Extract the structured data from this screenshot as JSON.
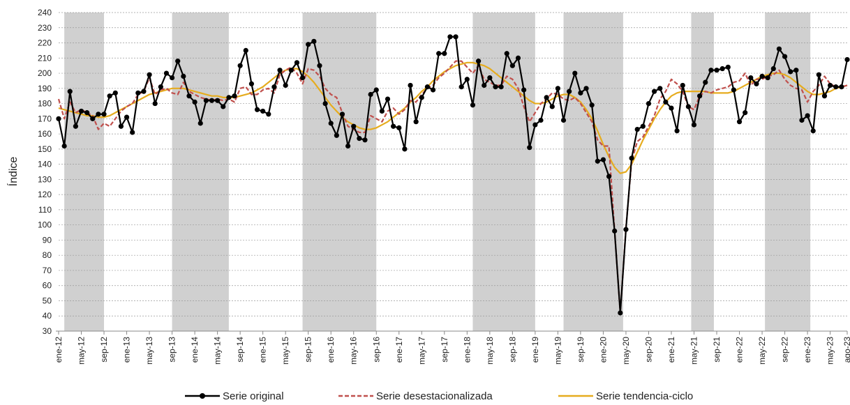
{
  "chart_data": {
    "type": "line",
    "y_label": "Índice",
    "categories": [
      "ene-12",
      null,
      null,
      null,
      "may-12",
      null,
      null,
      null,
      "sep-12",
      null,
      null,
      null,
      "ene-13",
      null,
      null,
      null,
      "may-13",
      null,
      null,
      null,
      "sep-13",
      null,
      null,
      null,
      "ene-14",
      null,
      null,
      null,
      "may-14",
      null,
      null,
      null,
      "sep-14",
      null,
      null,
      null,
      "ene-15",
      null,
      null,
      null,
      "may-15",
      null,
      null,
      null,
      "sep-15",
      null,
      null,
      null,
      "ene-16",
      null,
      null,
      null,
      "may-16",
      null,
      null,
      null,
      "sep-16",
      null,
      null,
      null,
      "ene-17",
      null,
      null,
      null,
      "may-17",
      null,
      null,
      null,
      "sep-17",
      null,
      null,
      null,
      "ene-18",
      null,
      null,
      null,
      "may-18",
      null,
      null,
      null,
      "sep-18",
      null,
      null,
      null,
      "ene-19",
      null,
      null,
      null,
      "may-19",
      null,
      null,
      null,
      "sep-19",
      null,
      null,
      null,
      "ene-20",
      null,
      null,
      null,
      "may-20",
      null,
      null,
      null,
      "sep-20",
      null,
      null,
      null,
      "ene-21",
      null,
      null,
      null,
      "may-21",
      null,
      null,
      null,
      "sep-21",
      null,
      null,
      null,
      "ene-22",
      null,
      null,
      null,
      "may-22",
      null,
      null,
      null,
      "sep-22",
      null,
      null,
      null,
      "ene-23",
      null,
      null,
      null,
      "may-23",
      null,
      null,
      "ago-23"
    ],
    "series": [
      {
        "name": "Serie original",
        "color": "#000000",
        "style": "solid-markers",
        "values": [
          170,
          152,
          188,
          165,
          175,
          174,
          170,
          173,
          173,
          185,
          187,
          165,
          171,
          161,
          187,
          188,
          199,
          180,
          191,
          200,
          197,
          208,
          198,
          185,
          181,
          167,
          182,
          182,
          182,
          178,
          184,
          185,
          205,
          215,
          193,
          176,
          175,
          173,
          191,
          202,
          192,
          202,
          207,
          197,
          219,
          221,
          205,
          180,
          167,
          159,
          173,
          152,
          165,
          157,
          156,
          186,
          189,
          175,
          183,
          165,
          164,
          150,
          192,
          168,
          184,
          191,
          189,
          213,
          213,
          224,
          224,
          191,
          196,
          179,
          208,
          192,
          197,
          191,
          191,
          213,
          205,
          210,
          189,
          151,
          166,
          169,
          184,
          178,
          190,
          169,
          188,
          200,
          187,
          190,
          179,
          142,
          143,
          132,
          96,
          42,
          97,
          144,
          163,
          165,
          180,
          188,
          190,
          181,
          177,
          162,
          192,
          178,
          166,
          185,
          194,
          202,
          202,
          203,
          204,
          189,
          168,
          174,
          197,
          193,
          198,
          197,
          203,
          216,
          211,
          201,
          202,
          169,
          172,
          162,
          199,
          185,
          192,
          191,
          191,
          209
        ]
      },
      {
        "name": "Serie desestacionalizada",
        "color": "#c0504d",
        "style": "dashed",
        "values": [
          183,
          170,
          181,
          174,
          176,
          174,
          172,
          163,
          167,
          165,
          170,
          175,
          178,
          180,
          186,
          188,
          197,
          186,
          189,
          190,
          187,
          186,
          194,
          188,
          186,
          184,
          183,
          182,
          183,
          182,
          183,
          181,
          190,
          191,
          186,
          186,
          189,
          190,
          187,
          199,
          202,
          204,
          200,
          193,
          203,
          202,
          198,
          190,
          186,
          184,
          174,
          165,
          163,
          161,
          161,
          172,
          170,
          168,
          175,
          177,
          173,
          176,
          182,
          181,
          186,
          190,
          192,
          197,
          200,
          204,
          208,
          208,
          204,
          200,
          205,
          196,
          194,
          192,
          192,
          198,
          196,
          190,
          178,
          168,
          174,
          180,
          183,
          187,
          186,
          183,
          182,
          184,
          180,
          174,
          168,
          156,
          152,
          152,
          96,
          42,
          98,
          142,
          155,
          158,
          165,
          172,
          183,
          188,
          196,
          193,
          188,
          178,
          176,
          185,
          188,
          187,
          189,
          190,
          191,
          194,
          195,
          200,
          192,
          196,
          196,
          198,
          199,
          202,
          196,
          192,
          190,
          189,
          181,
          188,
          192,
          198,
          193,
          191,
          191,
          192
        ]
      },
      {
        "name": "Serie tendencia-ciclo",
        "color": "#e6ac1e",
        "style": "solid",
        "values": [
          177,
          176,
          175,
          174,
          173,
          172,
          172,
          171,
          171,
          172,
          174,
          176,
          178,
          180,
          182,
          184,
          186,
          187,
          188,
          189,
          190,
          190,
          190,
          189,
          188,
          187,
          186,
          185,
          185,
          184,
          184,
          184,
          185,
          186,
          187,
          189,
          191,
          194,
          197,
          200,
          202,
          203,
          203,
          201,
          198,
          194,
          189,
          184,
          179,
          175,
          171,
          168,
          166,
          164,
          163,
          163,
          164,
          166,
          168,
          171,
          174,
          177,
          181,
          184,
          188,
          191,
          195,
          198,
          201,
          203,
          205,
          206,
          207,
          207,
          206,
          205,
          203,
          200,
          197,
          194,
          191,
          188,
          185,
          182,
          180,
          180,
          181,
          183,
          185,
          186,
          186,
          184,
          181,
          176,
          170,
          162,
          153,
          145,
          138,
          134,
          135,
          140,
          148,
          156,
          163,
          170,
          176,
          181,
          185,
          187,
          188,
          188,
          188,
          188,
          188,
          187,
          187,
          187,
          187,
          188,
          190,
          192,
          194,
          196,
          198,
          199,
          200,
          200,
          199,
          197,
          194,
          191,
          188,
          186,
          186,
          187,
          188,
          190,
          191,
          192
        ]
      }
    ],
    "shaded_periods": [
      [
        1,
        8
      ],
      [
        20,
        30
      ],
      [
        43,
        56
      ],
      [
        73,
        84
      ],
      [
        89,
        99.5
      ],
      [
        111.5,
        115.5
      ],
      [
        124.5,
        132.5
      ]
    ],
    "shade_color": "#d0d0d0",
    "ylim": [
      30,
      240
    ],
    "yticks": [
      30,
      40,
      50,
      60,
      70,
      80,
      90,
      100,
      110,
      120,
      130,
      140,
      150,
      160,
      170,
      180,
      190,
      200,
      210,
      220,
      230,
      240
    ],
    "grid": true,
    "legend": "bottom"
  }
}
